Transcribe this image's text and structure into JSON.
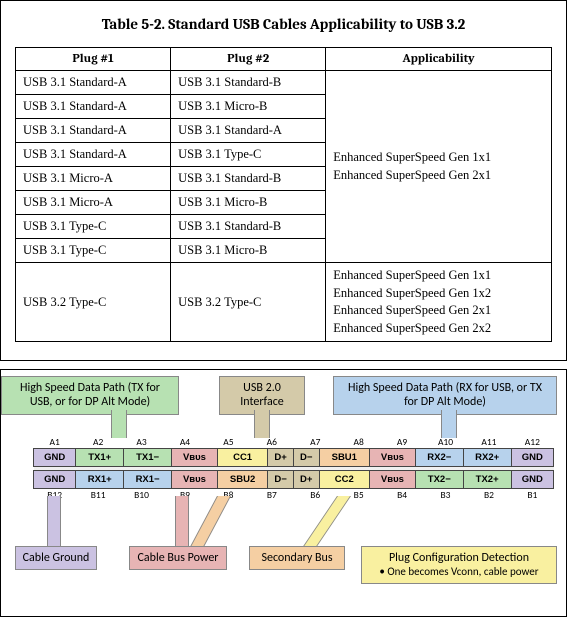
{
  "top": {
    "title": "Table 5-2.  Standard USB Cables Applicability to USB 3.2",
    "headers": [
      "Plug #1",
      "Plug #2",
      "Applicability"
    ],
    "group1": {
      "rows": [
        [
          "USB 3.1 Standard-A",
          "USB 3.1 Standard-B"
        ],
        [
          "USB 3.1 Standard-A",
          "USB 3.1 Micro-B"
        ],
        [
          "USB 3.1 Standard-A",
          "USB 3.1 Standard-A"
        ],
        [
          "USB 3.1 Standard-A",
          "USB 3.1 Type-C"
        ],
        [
          "USB 3.1 Micro-A",
          "USB 3.1 Standard-B"
        ],
        [
          "USB 3.1 Micro-A",
          "USB 3.1 Micro-B"
        ],
        [
          "USB 3.1 Type-C",
          "USB 3.1 Standard-B"
        ],
        [
          "USB 3.1 Type-C",
          "USB 3.1 Micro-B"
        ]
      ],
      "applicability": [
        "Enhanced SuperSpeed Gen 1x1",
        "Enhanced SuperSpeed Gen 2x1"
      ]
    },
    "group2": {
      "row": [
        "USB 3.2 Type-C",
        "USB 3.2 Type-C"
      ],
      "applicability": [
        "Enhanced SuperSpeed Gen 1x1",
        "Enhanced SuperSpeed Gen 1x2",
        "Enhanced SuperSpeed Gen 2x1",
        "Enhanced SuperSpeed Gen 2x2"
      ]
    }
  },
  "diagram": {
    "colors": {
      "green": "#b7e1b2",
      "tan": "#d4caa9",
      "blue": "#b7d2ec",
      "purple": "#cbc2e2",
      "red": "#e7b4b4",
      "orange": "#f5cfa3",
      "yellow": "#f9f0a0",
      "gray": "#e5e5e5",
      "border": "#888888"
    },
    "callouts": {
      "tx": {
        "text": "High Speed Data Path (TX for USB, or for DP Alt Mode)",
        "color": "green"
      },
      "usb2": {
        "text": "USB 2.0 Interface",
        "color": "tan"
      },
      "rx": {
        "text": "High Speed Data Path (RX for USB, or TX for DP Alt Mode)",
        "color": "blue"
      },
      "ground": {
        "text": "Cable Ground",
        "color": "purple"
      },
      "power": {
        "text": "Cable Bus Power",
        "color": "red"
      },
      "sbu": {
        "text": "Secondary Bus",
        "color": "orange"
      },
      "cc": {
        "text": "Plug Configuration Detection",
        "bullet": "•   One becomes Vconn, cable power",
        "color": "yellow"
      }
    },
    "rowA_labels": [
      "A1",
      "A2",
      "A3",
      "A4",
      "A5",
      "A6",
      "A7",
      "A8",
      "A9",
      "A10",
      "A11",
      "A12"
    ],
    "rowB_labels": [
      "B12",
      "B11",
      "B10",
      "B9",
      "B8",
      "B7",
      "B6",
      "B5",
      "B4",
      "B3",
      "B2",
      "B1"
    ],
    "rowA_pins": [
      {
        "t": "GND",
        "c": "purple"
      },
      {
        "t": "TX1+",
        "c": "green"
      },
      {
        "t": "TX1−",
        "c": "green"
      },
      {
        "t": "Vʙᴜs",
        "c": "red"
      },
      {
        "t": "CC1",
        "c": "yellow"
      },
      {
        "t": "D+",
        "c": "tan"
      },
      {
        "t": "D−",
        "c": "tan"
      },
      {
        "t": "SBU1",
        "c": "orange"
      },
      {
        "t": "Vʙᴜs",
        "c": "red"
      },
      {
        "t": "RX2−",
        "c": "blue"
      },
      {
        "t": "RX2+",
        "c": "blue"
      },
      {
        "t": "GND",
        "c": "purple"
      }
    ],
    "rowB_pins": [
      {
        "t": "GND",
        "c": "purple"
      },
      {
        "t": "RX1+",
        "c": "blue"
      },
      {
        "t": "RX1−",
        "c": "blue"
      },
      {
        "t": "Vʙᴜs",
        "c": "red"
      },
      {
        "t": "SBU2",
        "c": "orange"
      },
      {
        "t": "D−",
        "c": "tan"
      },
      {
        "t": "D+",
        "c": "tan"
      },
      {
        "t": "CC2",
        "c": "yellow"
      },
      {
        "t": "Vʙᴜs",
        "c": "red"
      },
      {
        "t": "TX2−",
        "c": "green"
      },
      {
        "t": "TX2+",
        "c": "green"
      },
      {
        "t": "GND",
        "c": "purple"
      }
    ]
  }
}
